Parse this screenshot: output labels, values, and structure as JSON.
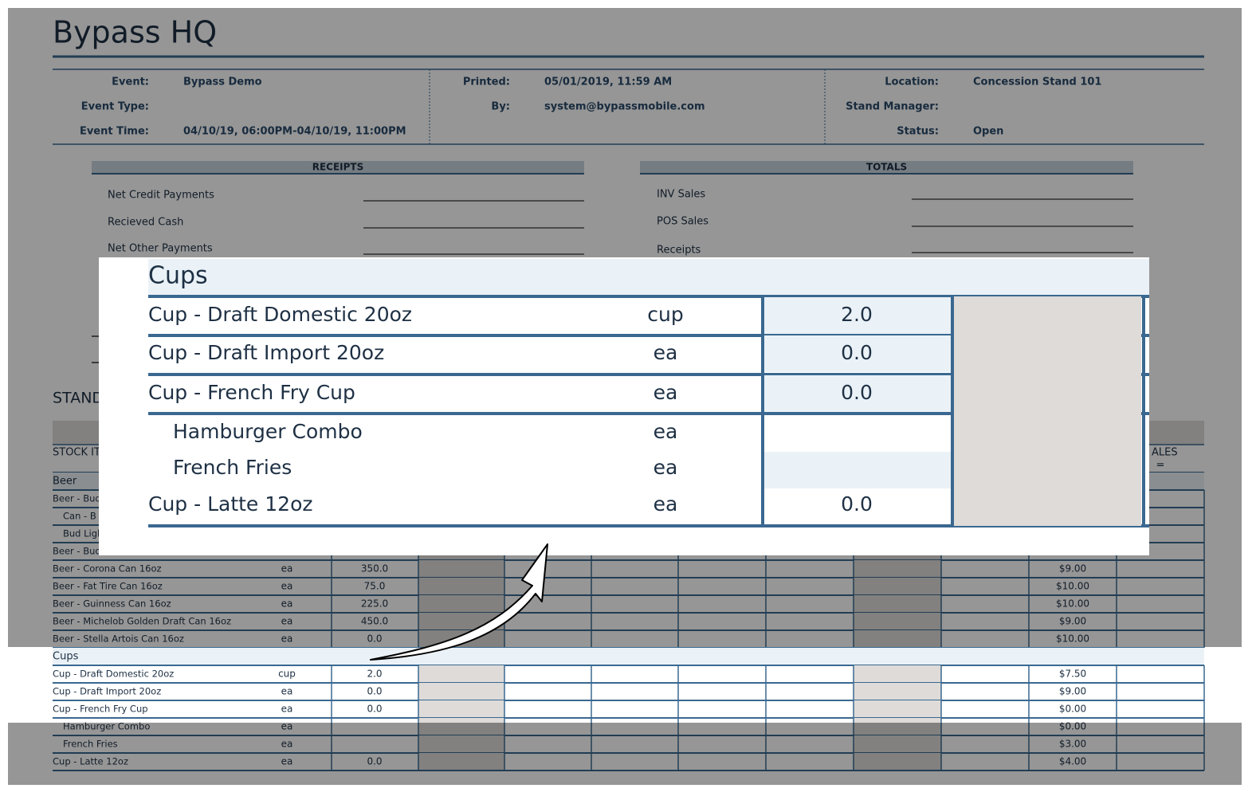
{
  "header": {
    "title": "Bypass HQ"
  },
  "info": [
    [
      {
        "label": "Event:",
        "value": "Bypass Demo"
      },
      {
        "label": "Event Type:"
      },
      {
        "label": "Event Time:",
        "value": "04/10/19, 06:00PM-04/10/19, 11:00PM"
      }
    ],
    [
      {
        "label": "Printed:",
        "value": "05/01/2019, 11:59 AM"
      },
      {
        "label": "By:",
        "value": "system@bypassmobile.com"
      }
    ],
    [
      {
        "label": "Location:",
        "value": "Concession Stand 101"
      },
      {
        "label": "Stand Manager:"
      },
      {
        "label": "Status:",
        "value": "Open"
      }
    ]
  ],
  "receipts": {
    "title": "RECEIPTS",
    "items": [
      "Net Credit Payments",
      "Recieved Cash",
      "Net Other Payments"
    ]
  },
  "totals": {
    "title": "TOTALS",
    "items": [
      "INV Sales",
      "POS Sales",
      "Receipts"
    ]
  },
  "section_title": "STAND",
  "table": {
    "columns": {
      "first": "STOCK IT",
      "last": "ALES",
      "last_sub": "="
    },
    "groups": [
      {
        "name": "Beer",
        "rows": [
          {
            "name": "Beer - Bud",
            "sub_items": [
              {
                "name": "Can - B"
              },
              {
                "name": "Bud Ligh"
              }
            ]
          },
          {
            "name": "Beer - Bud"
          },
          {
            "name": "Beer - Corona Can 16oz",
            "unit": "ea",
            "qty": "350.0",
            "price": "$9.00"
          },
          {
            "name": "Beer - Fat Tire Can 16oz",
            "unit": "ea",
            "qty": "75.0",
            "price": "$10.00"
          },
          {
            "name": "Beer - Guinness Can 16oz",
            "unit": "ea",
            "qty": "225.0",
            "price": "$10.00"
          },
          {
            "name": "Beer - Michelob Golden Draft Can 16oz",
            "unit": "ea",
            "qty": "450.0",
            "price": "$9.00"
          },
          {
            "name": "Beer - Stella Artois Can 16oz",
            "unit": "ea",
            "qty": "0.0",
            "price": "$10.00"
          }
        ]
      },
      {
        "name": "Cups",
        "rows": [
          {
            "name": "Cup - Draft Domestic 20oz",
            "unit": "cup",
            "qty": "2.0",
            "price": "$7.50"
          },
          {
            "name": "Cup - Draft Import 20oz",
            "unit": "ea",
            "qty": "0.0",
            "price": "$9.00"
          },
          {
            "name": "Cup - French Fry Cup",
            "unit": "ea",
            "qty": "0.0",
            "price": "$0.00",
            "sub_items": [
              {
                "name": "Hamburger Combo",
                "unit": "ea",
                "price": "$0.00"
              },
              {
                "name": "French Fries",
                "unit": "ea",
                "price": "$3.00"
              }
            ]
          },
          {
            "name": "Cup - Latte 12oz",
            "unit": "ea",
            "qty": "0.0",
            "price": "$4.00"
          }
        ]
      }
    ]
  }
}
